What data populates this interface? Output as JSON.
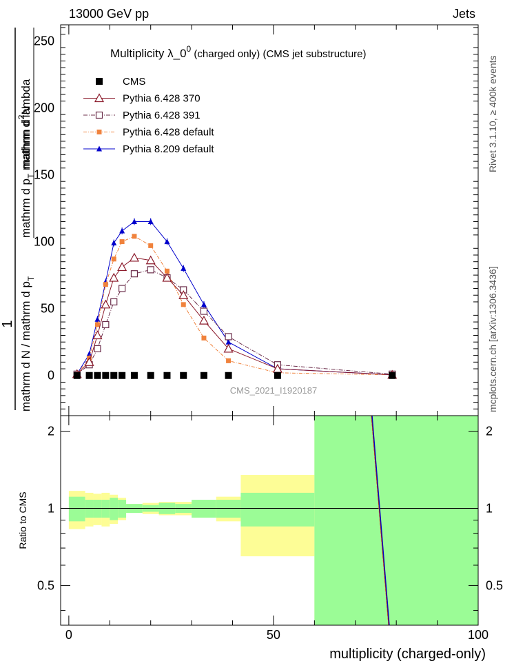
{
  "header": {
    "left": "13000 GeV pp",
    "right": "Jets"
  },
  "side_labels": {
    "rivet": "Rivet 3.1.10, ≥ 400k events",
    "mcplots": "mcplots.cern.ch [arXiv:1306.3436]"
  },
  "title": {
    "main": "Multiplicity  λ_0",
    "sup": "0",
    "rest": " (charged only) (CMS jet substructure)"
  },
  "analysis_id": "CMS_2021_I1920187",
  "ylabel_main": {
    "one": "1",
    "den": "mathrm d N / mathrm d p",
    "den_sub": "T",
    "num": "mathrm d",
    "num_sup": "2",
    "num2": "N",
    "den2": "mathrm d p",
    "den2_sub": "T",
    "den3": " mathrm d lambda"
  },
  "ylabel_ratio": "Ratio to CMS",
  "xlabel": "multiplicity (charged-only)",
  "colors": {
    "cms": "#000000",
    "p370": "#8b1a2b",
    "p391": "#6b2d4a",
    "pdef": "#f0823c",
    "p8": "#0000cc",
    "band_inner": "#9bfc96",
    "band_outer": "#fdfd96"
  },
  "chart_data": {
    "type": "line",
    "x_ticks": [
      "0",
      "50",
      "100"
    ],
    "y_ticks_main": [
      "0",
      "50",
      "100",
      "150",
      "200",
      "250"
    ],
    "y_ticks_ratio": [
      "0.5",
      "1",
      "2"
    ],
    "xlim": [
      -2,
      100
    ],
    "ylim_main": [
      -30,
      262
    ],
    "ylim_ratio": [
      0.35,
      2.3
    ],
    "ratio_scale": "log",
    "x": [
      2,
      5,
      7,
      9,
      11,
      13,
      16,
      20,
      24,
      28,
      33,
      39,
      51,
      79
    ],
    "series": [
      {
        "name": "CMS",
        "key": "cms",
        "style": "square-filled",
        "values": [
          0,
          0,
          0,
          0,
          0,
          0,
          0,
          0,
          0,
          0,
          0,
          0,
          0,
          0
        ]
      },
      {
        "name": "Pythia 6.428 370",
        "key": "p370",
        "style": "triangle-open",
        "dash": "",
        "values": [
          1,
          10,
          30,
          53,
          73,
          81,
          88,
          86,
          73,
          60,
          41,
          20,
          5,
          0.5
        ]
      },
      {
        "name": "Pythia 6.428 391",
        "key": "p391",
        "style": "square-open",
        "dash": "6,2,1,2",
        "values": [
          1,
          8,
          20,
          38,
          55,
          65,
          76,
          79,
          73,
          64,
          48,
          29,
          8,
          1
        ]
      },
      {
        "name": "Pythia 6.428 default",
        "key": "pdef",
        "style": "square-filled-small",
        "dash": "5,2,1,2",
        "values": [
          1,
          13,
          38,
          68,
          87,
          100,
          104,
          97,
          78,
          53,
          28,
          11,
          2,
          0.5
        ]
      },
      {
        "name": "Pythia 8.209 default",
        "key": "p8",
        "style": "triangle-filled",
        "dash": "",
        "values": [
          1,
          16,
          42,
          70,
          99,
          108,
          115,
          115,
          100,
          80,
          53,
          25,
          5,
          0.5
        ]
      }
    ],
    "ratio_bands": {
      "edges": [
        0,
        4,
        6,
        8,
        10,
        12,
        14,
        18,
        22,
        26,
        30,
        36,
        42,
        60,
        100
      ],
      "inner": [
        0.11,
        0.08,
        0.08,
        0.08,
        0.1,
        0.08,
        0.04,
        0.03,
        0.05,
        0.04,
        0.08,
        0.08,
        0.15,
        1.5
      ],
      "outer": [
        0.17,
        0.15,
        0.14,
        0.15,
        0.13,
        0.1,
        0.04,
        0.05,
        0.06,
        0.06,
        0.06,
        0.11,
        0.35,
        1.5
      ]
    }
  }
}
